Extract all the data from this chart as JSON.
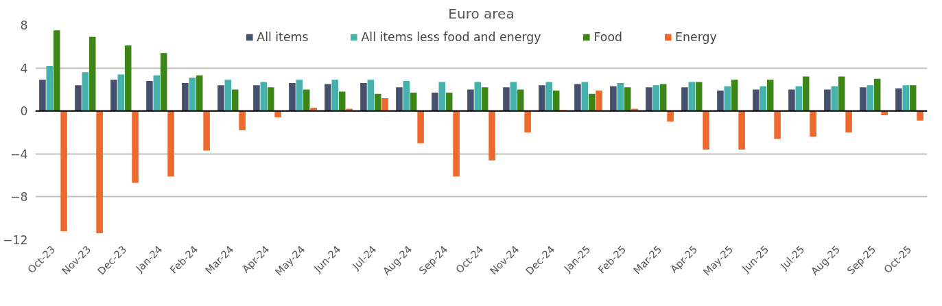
{
  "chart_data": {
    "type": "bar",
    "title": "Euro area",
    "categories": [
      "Oct-23",
      "Nov-23",
      "Dec-23",
      "Jan-24",
      "Feb-24",
      "Mar-24",
      "Apr-24",
      "May-24",
      "Jun-24",
      "Jul-24",
      "Aug-24",
      "Sep-24",
      "Oct-24",
      "Nov-24",
      "Dec-24",
      "Jan-25",
      "Feb-25",
      "Mar-25",
      "Apr-25",
      "May-25",
      "Jun-25",
      "Jul-25",
      "Aug-25",
      "Sep-25",
      "Oct-25"
    ],
    "series": [
      {
        "name": "All items",
        "color": "#474f6e",
        "values": [
          2.9,
          2.4,
          2.9,
          2.8,
          2.6,
          2.4,
          2.4,
          2.6,
          2.5,
          2.6,
          2.2,
          1.7,
          2.0,
          2.2,
          2.4,
          2.5,
          2.3,
          2.2,
          2.2,
          1.9,
          2.0,
          2.0,
          2.0,
          2.2,
          2.1
        ]
      },
      {
        "name": "All items less food and energy",
        "color": "#48b0aa",
        "values": [
          4.2,
          3.6,
          3.4,
          3.3,
          3.1,
          2.9,
          2.7,
          2.9,
          2.9,
          2.9,
          2.8,
          2.7,
          2.7,
          2.7,
          2.7,
          2.7,
          2.6,
          2.4,
          2.7,
          2.3,
          2.3,
          2.3,
          2.3,
          2.4,
          2.4
        ]
      },
      {
        "name": "Food",
        "color": "#3d8519",
        "values": [
          7.5,
          6.9,
          6.1,
          5.4,
          3.3,
          2.0,
          2.2,
          2.0,
          1.8,
          1.6,
          1.7,
          1.7,
          2.2,
          2.0,
          1.9,
          1.6,
          2.2,
          2.5,
          2.7,
          2.9,
          2.9,
          3.2,
          3.2,
          3.0,
          2.4
        ]
      },
      {
        "name": "Energy",
        "color": "#ee6a2c",
        "values": [
          -11.2,
          -11.4,
          -6.7,
          -6.1,
          -3.7,
          -1.8,
          -0.6,
          0.3,
          0.2,
          1.2,
          -3.0,
          -6.1,
          -4.6,
          -2.0,
          0.1,
          1.9,
          0.2,
          -1.0,
          -3.6,
          -3.6,
          -2.6,
          -2.4,
          -2.0,
          -0.4,
          -0.9
        ]
      }
    ],
    "ylim": [
      -12,
      8
    ],
    "yticks": [
      -12,
      -8,
      -4,
      0,
      4,
      8
    ],
    "grid": "y",
    "legend": "top"
  }
}
